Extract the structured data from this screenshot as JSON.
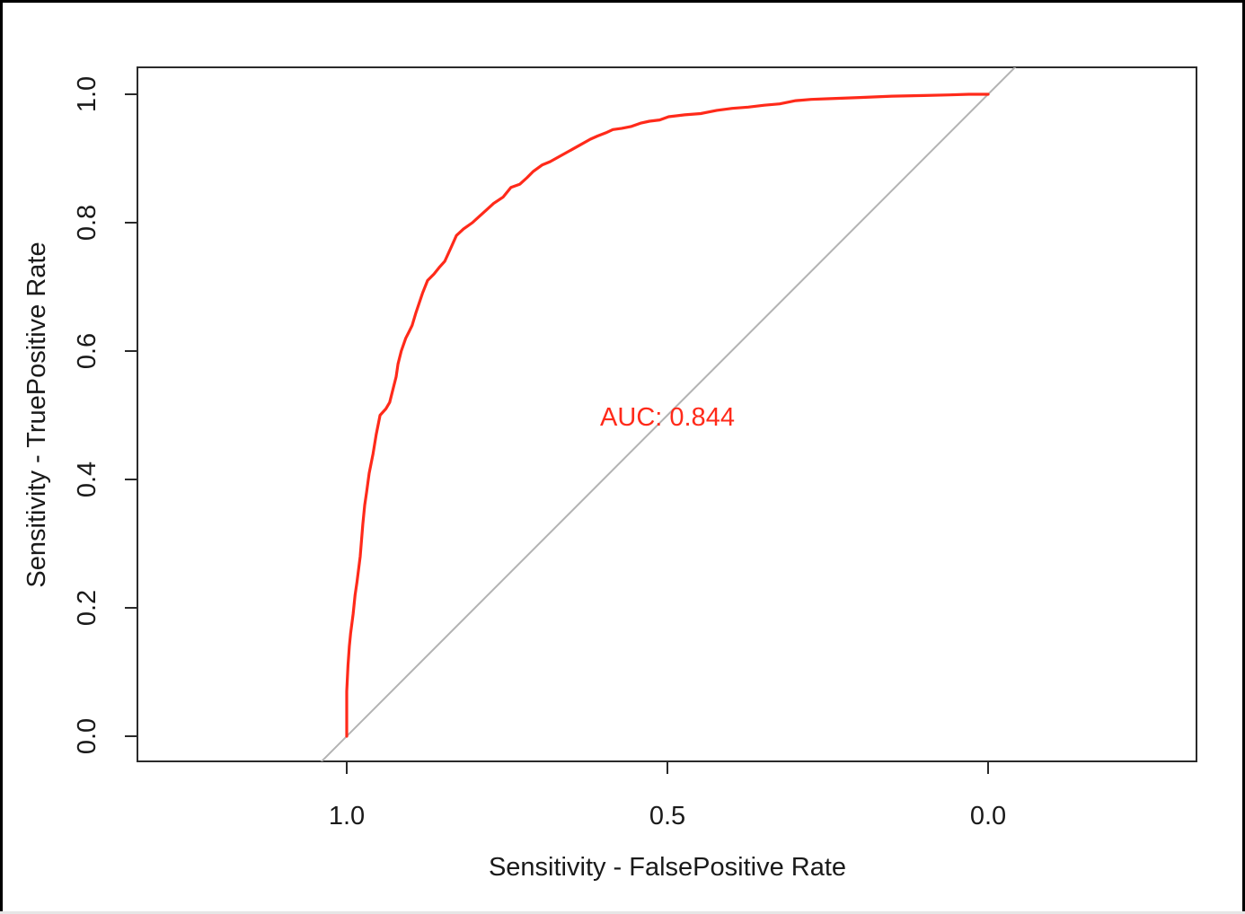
{
  "chart_data": {
    "type": "line",
    "title": "",
    "xlabel": "Sensitivity - FalsePositive Rate",
    "ylabel": "Sensitivity - TruePositive Rate",
    "xlim": [
      1.0,
      0.0
    ],
    "ylim": [
      0.0,
      1.0
    ],
    "x_reversed": true,
    "x_ticks": [
      {
        "value": 1.0,
        "label": "1.0"
      },
      {
        "value": 0.5,
        "label": "0.5"
      },
      {
        "value": 0.0,
        "label": "0.0"
      }
    ],
    "y_ticks": [
      {
        "value": 0.0,
        "label": "0.0"
      },
      {
        "value": 0.2,
        "label": "0.2"
      },
      {
        "value": 0.4,
        "label": "0.4"
      },
      {
        "value": 0.6,
        "label": "0.6"
      },
      {
        "value": 0.8,
        "label": "0.8"
      },
      {
        "value": 1.0,
        "label": "1.0"
      }
    ],
    "grid": false,
    "legend": "none",
    "reference_line": {
      "from": [
        1.0,
        0.0
      ],
      "to": [
        0.0,
        1.0
      ],
      "color": "#b3b3b3"
    },
    "annotation": {
      "text": "AUC: 0.844",
      "x": 0.5,
      "y": 0.484,
      "color": "#ff2a1a"
    },
    "series": [
      {
        "color": "#ff2a1a",
        "x": [
          1.0,
          1.0,
          0.998,
          0.996,
          0.994,
          0.99,
          0.987,
          0.984,
          0.979,
          0.975,
          0.972,
          0.969,
          0.965,
          0.959,
          0.954,
          0.948,
          0.939,
          0.933,
          0.928,
          0.923,
          0.92,
          0.915,
          0.908,
          0.903,
          0.898,
          0.892,
          0.882,
          0.874,
          0.864,
          0.856,
          0.847,
          0.838,
          0.829,
          0.818,
          0.804,
          0.793,
          0.782,
          0.771,
          0.756,
          0.744,
          0.73,
          0.719,
          0.709,
          0.695,
          0.683,
          0.674,
          0.656,
          0.638,
          0.62,
          0.609,
          0.596,
          0.585,
          0.571,
          0.556,
          0.542,
          0.528,
          0.512,
          0.498,
          0.473,
          0.448,
          0.423,
          0.399,
          0.374,
          0.349,
          0.325,
          0.3,
          0.276,
          0.251,
          0.2,
          0.15,
          0.1,
          0.06,
          0.03,
          0.0
        ],
        "y": [
          0.0,
          0.07,
          0.11,
          0.14,
          0.16,
          0.19,
          0.22,
          0.24,
          0.28,
          0.33,
          0.36,
          0.38,
          0.41,
          0.44,
          0.47,
          0.5,
          0.51,
          0.52,
          0.54,
          0.56,
          0.58,
          0.6,
          0.62,
          0.63,
          0.64,
          0.66,
          0.69,
          0.71,
          0.72,
          0.73,
          0.74,
          0.76,
          0.78,
          0.79,
          0.8,
          0.81,
          0.82,
          0.83,
          0.84,
          0.855,
          0.86,
          0.87,
          0.88,
          0.89,
          0.895,
          0.9,
          0.91,
          0.92,
          0.93,
          0.935,
          0.94,
          0.945,
          0.947,
          0.95,
          0.955,
          0.958,
          0.96,
          0.965,
          0.968,
          0.97,
          0.975,
          0.978,
          0.98,
          0.983,
          0.985,
          0.99,
          0.992,
          0.993,
          0.995,
          0.997,
          0.998,
          0.999,
          1.0,
          1.0
        ]
      }
    ]
  }
}
